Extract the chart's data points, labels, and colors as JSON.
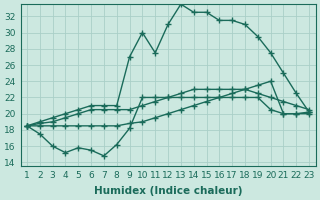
{
  "xlabel": "Humidex (Indice chaleur)",
  "ylabel": "",
  "background_color": "#cce8e0",
  "grid_color": "#aacfc8",
  "line_color": "#1a6b5a",
  "x_values": [
    1,
    2,
    3,
    4,
    5,
    6,
    7,
    8,
    9,
    10,
    11,
    12,
    13,
    14,
    15,
    16,
    17,
    18,
    19,
    20,
    21,
    22,
    23
  ],
  "series": [
    [
      18.5,
      17.5,
      16.0,
      15.2,
      15.8,
      15.5,
      14.8,
      16.2,
      18.2,
      22.0,
      22.0,
      22.0,
      22.0,
      22.0,
      22.0,
      22.0,
      22.0,
      22.0,
      22.0,
      20.5,
      20.0,
      20.0,
      20.0
    ],
    [
      18.5,
      18.5,
      18.5,
      18.5,
      18.5,
      18.5,
      18.5,
      18.5,
      18.8,
      19.0,
      19.5,
      20.0,
      20.5,
      21.0,
      21.5,
      22.0,
      22.5,
      23.0,
      23.5,
      24.0,
      20.0,
      20.0,
      20.2
    ],
    [
      18.5,
      18.8,
      19.0,
      19.5,
      20.0,
      20.5,
      20.5,
      20.5,
      20.5,
      21.0,
      21.5,
      22.0,
      22.5,
      23.0,
      23.0,
      23.0,
      23.0,
      23.0,
      22.5,
      22.0,
      21.5,
      21.0,
      20.5
    ],
    [
      18.5,
      19.0,
      19.5,
      20.0,
      20.5,
      21.0,
      21.0,
      21.0,
      27.0,
      30.0,
      27.5,
      31.0,
      33.5,
      32.5,
      32.5,
      31.5,
      31.5,
      31.0,
      29.5,
      27.5,
      25.0,
      22.5,
      20.2
    ]
  ],
  "ylim": [
    13.5,
    33.5
  ],
  "xlim": [
    0.5,
    23.5
  ],
  "yticks": [
    14,
    16,
    18,
    20,
    22,
    24,
    26,
    28,
    30,
    32
  ],
  "xticks": [
    1,
    2,
    3,
    4,
    5,
    6,
    7,
    8,
    9,
    10,
    11,
    12,
    13,
    14,
    15,
    16,
    17,
    18,
    19,
    20,
    21,
    22,
    23
  ],
  "tick_fontsize": 6.5,
  "xlabel_fontsize": 7.5,
  "line_width": 1.0,
  "marker": "+",
  "marker_size": 4,
  "marker_edge_width": 1.0
}
